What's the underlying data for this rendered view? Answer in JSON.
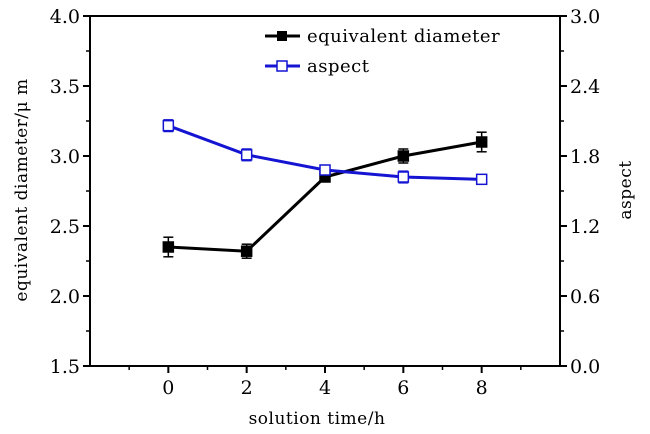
{
  "chart_data": {
    "type": "line",
    "title": "",
    "xlabel": "solution time/h",
    "ylabel_left": "equivalent diameter/μ m",
    "ylabel_right": "aspect",
    "x": [
      0,
      2,
      4,
      6,
      8
    ],
    "x_ticks": [
      "0",
      "2",
      "4",
      "6",
      "8"
    ],
    "xlim": [
      -2,
      10
    ],
    "ylim_left": [
      1.5,
      4.0
    ],
    "ylim_right": [
      0.0,
      3.0
    ],
    "y_ticks_left": [
      "1.5",
      "2.0",
      "2.5",
      "3.0",
      "3.5",
      "4.0"
    ],
    "y_ticks_right": [
      "0.0",
      "0.6",
      "1.2",
      "1.8",
      "2.4",
      "3.0"
    ],
    "grid": false,
    "legend_position": "top-right",
    "series": [
      {
        "name": "equivalent diameter",
        "axis": "left",
        "color": "#000000",
        "marker": "filled-square",
        "values": [
          2.35,
          2.32,
          2.85,
          3.0,
          3.1
        ],
        "errors": [
          0.07,
          0.05,
          0.03,
          0.05,
          0.07
        ]
      },
      {
        "name": "aspect",
        "axis": "right",
        "color": "#1414d2",
        "marker": "open-square",
        "values": [
          2.06,
          1.81,
          1.68,
          1.62,
          1.6
        ],
        "errors": [
          0.05,
          0.05,
          0.03,
          0.05,
          0.02
        ]
      }
    ]
  }
}
